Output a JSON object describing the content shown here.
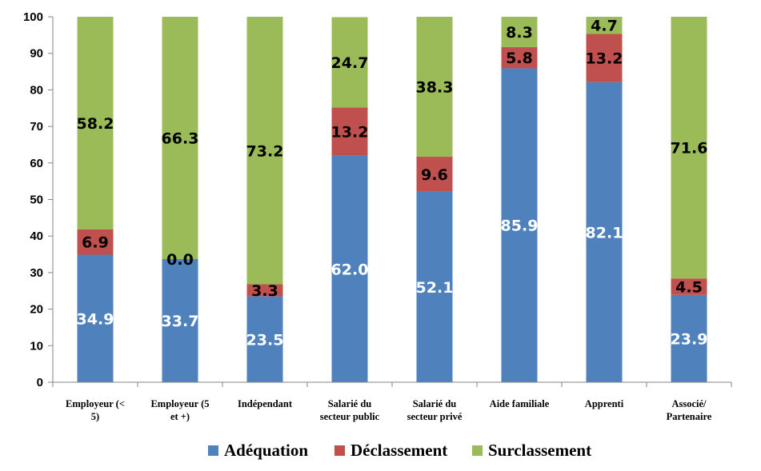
{
  "chart_data": {
    "type": "bar",
    "stacked": true,
    "categories": [
      [
        "Employeur (<",
        "5)"
      ],
      [
        "Employeur (5",
        "et +)"
      ],
      [
        "Indépendant"
      ],
      [
        "Salarié du",
        "secteur public"
      ],
      [
        "Salarié du",
        "secteur privé"
      ],
      [
        "Aide familiale"
      ],
      [
        "Apprenti"
      ],
      [
        "Associé/",
        "Partenaire"
      ]
    ],
    "series": [
      {
        "name": "Adéquation",
        "color": "#4f81bd",
        "label_color": "#ffffff",
        "values": [
          34.9,
          33.7,
          23.5,
          62.0,
          52.1,
          85.9,
          82.1,
          23.9
        ],
        "labels": [
          "34.9",
          "33.7",
          "23.5",
          "62.0",
          "52.1",
          "85.9",
          "82.1",
          "23.9"
        ]
      },
      {
        "name": "Déclassement",
        "color": "#c0504d",
        "label_color": "#000000",
        "values": [
          6.9,
          0.0,
          3.3,
          13.2,
          9.6,
          5.8,
          13.2,
          4.5
        ],
        "labels": [
          "6.9",
          "0.0",
          "3.3",
          "13.2",
          "9.6",
          "5.8",
          "13.2",
          "4.5"
        ]
      },
      {
        "name": "Surclassement",
        "color": "#9bbb59",
        "label_color": "#000000",
        "values": [
          58.2,
          66.3,
          73.2,
          24.7,
          38.3,
          8.3,
          4.7,
          71.6
        ],
        "labels": [
          "58.2",
          "66.3",
          "73.2",
          "24.7",
          "38.3",
          "8.3",
          "4.7",
          "71.6"
        ]
      }
    ],
    "ylim": [
      0,
      100
    ],
    "yticks": [
      "0",
      "10",
      "20",
      "30",
      "40",
      "50",
      "60",
      "70",
      "80",
      "90",
      "100"
    ],
    "grid": false,
    "legend_position": "bottom"
  }
}
